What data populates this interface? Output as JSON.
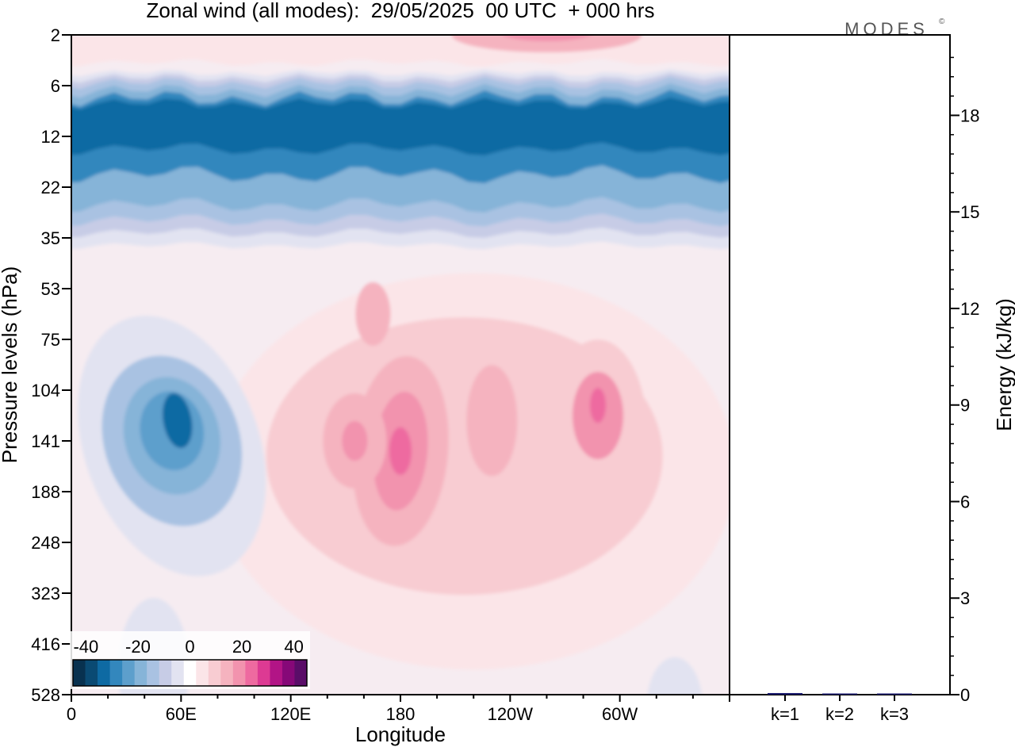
{
  "title": "Zonal wind (all modes):  29/05/2025  00 UTC  + 000 hrs",
  "logo_text": "MODES",
  "logo_mark": "©",
  "chart_data": [
    {
      "type": "heatmap",
      "title": "Zonal wind (all modes):  29/05/2025  00 UTC  + 000 hrs",
      "xlabel": "Longitude",
      "ylabel": "Pressure levels (hPa)",
      "x_ticks": [
        "0",
        "60E",
        "120E",
        "180",
        "120W",
        "60W"
      ],
      "x_tick_degrees": [
        0,
        60,
        120,
        180,
        240,
        300
      ],
      "xlim": [
        0,
        360
      ],
      "y_ticks": [
        "2",
        "6",
        "12",
        "22",
        "35",
        "53",
        "75",
        "104",
        "141",
        "188",
        "248",
        "323",
        "416",
        "528"
      ],
      "colorbar": {
        "ticks": [
          "-40",
          "-20",
          "0",
          "20",
          "40"
        ],
        "range": [
          -45,
          45
        ],
        "colors": [
          "#08314f",
          "#0a4a73",
          "#0e6aa3",
          "#3387bd",
          "#5d9fcc",
          "#86b4d8",
          "#a9c2e2",
          "#c7cce6",
          "#e2e3f1",
          "#ffffff",
          "#fbe5e8",
          "#f8ccd2",
          "#f5b3bf",
          "#f293ae",
          "#ee6aa0",
          "#dd3a93",
          "#b21486",
          "#860878",
          "#5a0d68"
        ]
      },
      "features": [
        {
          "name": "stratospheric easterlies",
          "lon_range": [
            0,
            360
          ],
          "level_range": [
            6,
            30
          ],
          "min_value": -38
        },
        {
          "name": "easterly core",
          "lon": 50,
          "level": 135,
          "min_value": -32
        },
        {
          "name": "westerly core",
          "lon": 180,
          "level": 150,
          "max_value": 26
        },
        {
          "name": "westerly core",
          "lon": 288,
          "level": 130,
          "max_value": 24
        },
        {
          "name": "westerly core",
          "lon": 155,
          "level": 140,
          "max_value": 20
        },
        {
          "name": "upper westerlies",
          "lon": 260,
          "level": 2,
          "max_value": 22
        }
      ]
    },
    {
      "type": "bar",
      "ylabel": "Energy (kJ/kg)",
      "categories": [
        "k=1",
        "k=2",
        "k=3"
      ],
      "values": [
        0.05,
        0.03,
        0.03
      ],
      "ylim": [
        0,
        20.5
      ],
      "y_ticks": [
        0,
        3,
        6,
        9,
        12,
        15,
        18
      ],
      "bar_color": "#1a1a6e"
    }
  ]
}
